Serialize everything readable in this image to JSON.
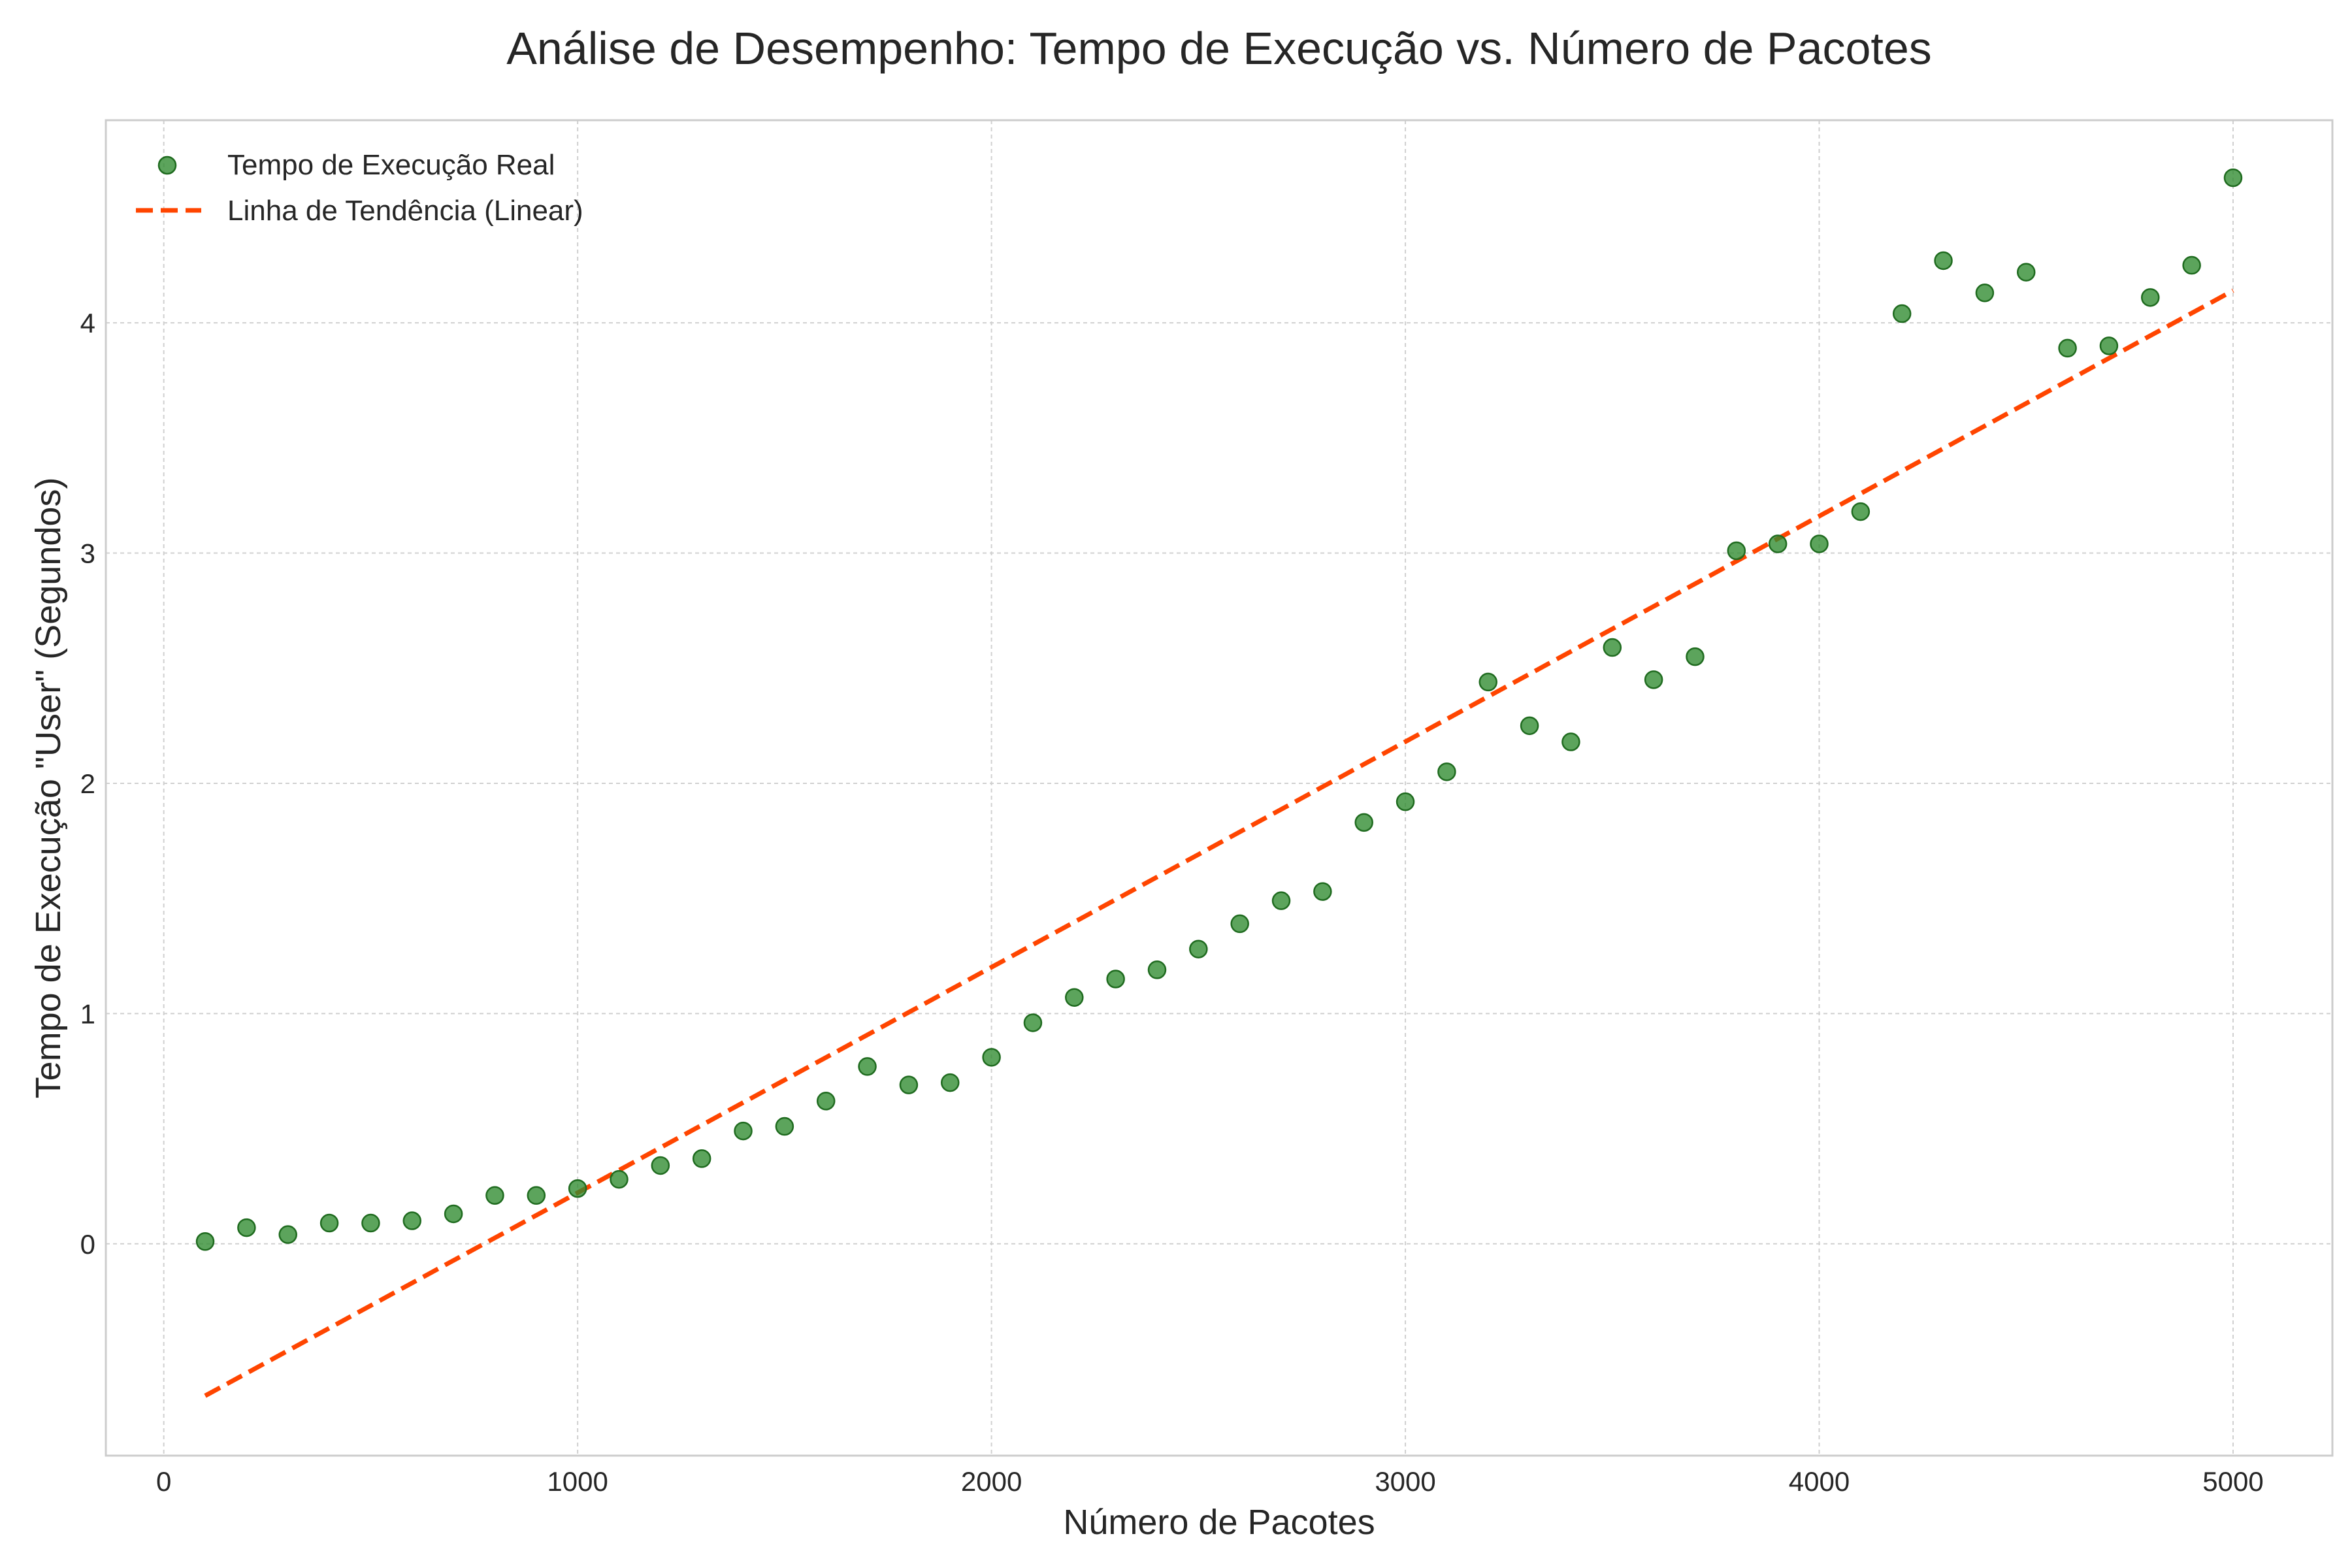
{
  "chart_data": {
    "type": "scatter",
    "title": "Análise de Desempenho: Tempo de Execução vs. Número de Pacotes",
    "xlabel": "Número de Pacotes",
    "ylabel": "Tempo de Execução \"User\" (Segundos)",
    "xlim": [
      -140,
      5240
    ],
    "ylim": [
      -0.92,
      4.88
    ],
    "x_ticks": [
      0,
      1000,
      2000,
      3000,
      4000,
      5000
    ],
    "y_ticks": [
      0,
      1,
      2,
      3,
      4
    ],
    "grid": true,
    "legend_position": "top-left",
    "series": [
      {
        "name": "Tempo de Execução Real",
        "kind": "scatter",
        "color": "#2e8b2e",
        "x": [
          100,
          200,
          300,
          400,
          500,
          600,
          700,
          800,
          900,
          1000,
          1100,
          1200,
          1300,
          1400,
          1500,
          1600,
          1700,
          1800,
          1900,
          2000,
          2100,
          2200,
          2300,
          2400,
          2500,
          2600,
          2700,
          2800,
          2900,
          3000,
          3100,
          3200,
          3300,
          3400,
          3500,
          3600,
          3700,
          3800,
          3900,
          4000,
          4100,
          4200,
          4300,
          4400,
          4500,
          4600,
          4700,
          4800,
          4900,
          5000
        ],
        "y": [
          0.01,
          0.07,
          0.04,
          0.09,
          0.09,
          0.1,
          0.13,
          0.21,
          0.21,
          0.24,
          0.28,
          0.34,
          0.37,
          0.49,
          0.51,
          0.62,
          0.77,
          0.69,
          0.7,
          0.81,
          0.96,
          1.07,
          1.15,
          1.19,
          1.28,
          1.39,
          1.49,
          1.53,
          1.83,
          1.92,
          2.05,
          2.44,
          2.25,
          2.18,
          2.59,
          2.45,
          2.55,
          3.01,
          3.04,
          3.04,
          3.18,
          4.04,
          4.27,
          4.13,
          4.22,
          3.89,
          3.9,
          4.11,
          4.25,
          4.63
        ]
      },
      {
        "name": "Linha de Tendência (Linear)",
        "kind": "line",
        "style": "dashed",
        "color": "#ff4500",
        "x": [
          100,
          5000
        ],
        "y": [
          -0.66,
          4.14
        ]
      }
    ]
  }
}
